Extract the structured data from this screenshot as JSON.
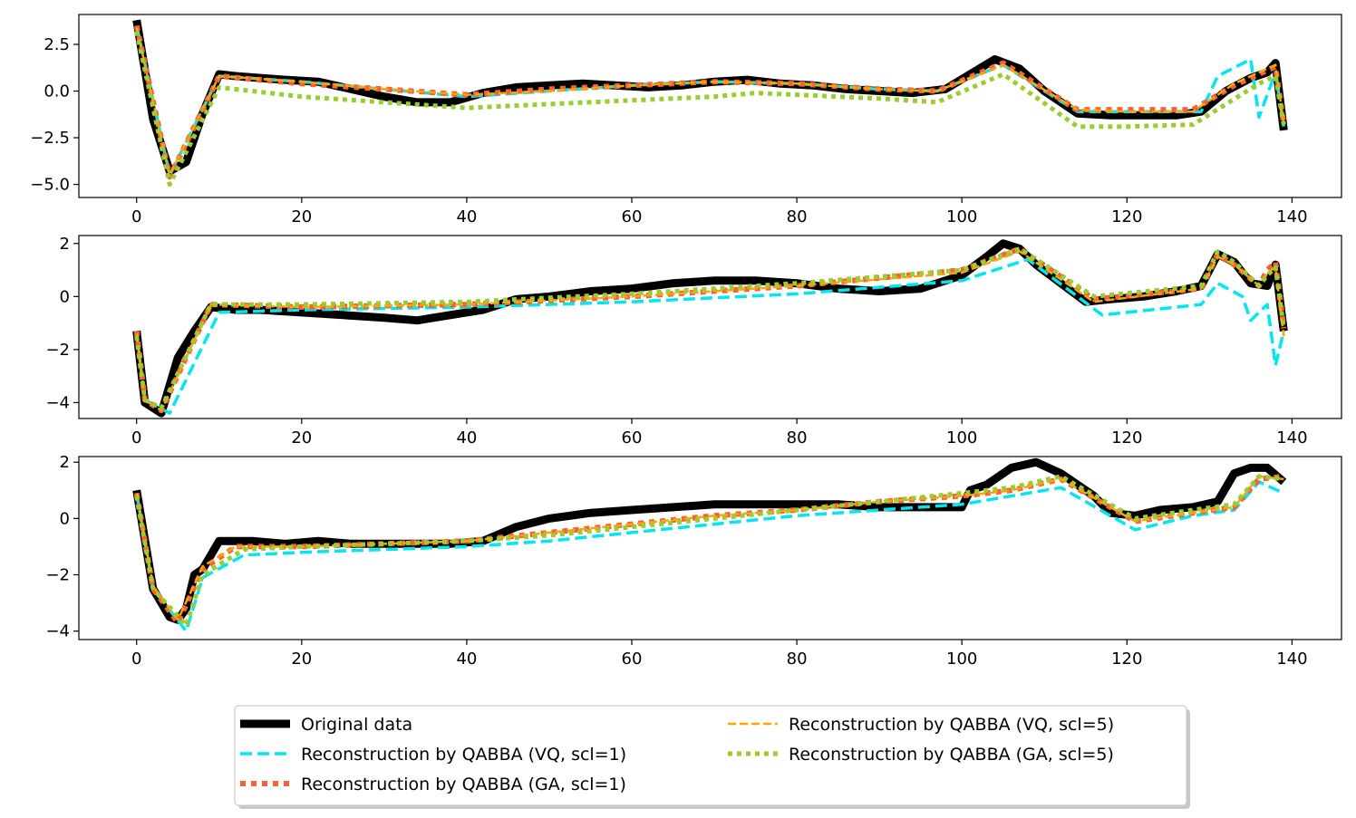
{
  "chart_data": {
    "type": "line",
    "title": "",
    "xlabel": "",
    "ylabel": "",
    "colors": {
      "original": "#000000",
      "vq1": "#00e5ee",
      "ga1": "#f4623a",
      "vq5": "#ffa500",
      "ga5": "#9acd32"
    },
    "legend": {
      "position": "bottom-center",
      "entries": [
        {
          "key": "original",
          "label": "Original data"
        },
        {
          "key": "vq1",
          "label": "Reconstruction by QABBA (VQ, scl=1)"
        },
        {
          "key": "ga1",
          "label": "Reconstruction by QABBA (GA, scl=1)"
        },
        {
          "key": "vq5",
          "label": "Reconstruction by QABBA (VQ, scl=5)"
        },
        {
          "key": "ga5",
          "label": "Reconstruction by QABBA (GA, scl=5)"
        }
      ]
    },
    "panels": [
      {
        "xlim": [
          -7,
          146
        ],
        "ylim": [
          -5.7,
          4.1
        ],
        "xticks": [
          0,
          20,
          40,
          60,
          80,
          100,
          120,
          140
        ],
        "xtick_labels": [
          "0",
          "20",
          "40",
          "60",
          "80",
          "100",
          "120",
          "140"
        ],
        "yticks": [
          2.5,
          0.0,
          -2.5,
          -5.0
        ],
        "ytick_labels": [
          "2.5",
          "0.0",
          "−2.5",
          "−5.0"
        ],
        "series": [
          {
            "key": "original",
            "x": [
              0,
              2,
              4,
              6,
              8,
              10,
              12,
              15,
              18,
              22,
              26,
              30,
              34,
              38,
              42,
              46,
              50,
              54,
              58,
              62,
              66,
              70,
              74,
              78,
              82,
              86,
              90,
              94,
              98,
              101,
              104,
              107,
              110,
              114,
              118,
              122,
              126,
              129,
              132,
              135,
              137,
              138,
              139
            ],
            "y": [
              3.8,
              -1.5,
              -4.3,
              -3.8,
              -1.2,
              0.9,
              0.8,
              0.7,
              0.6,
              0.5,
              0.1,
              -0.3,
              -0.6,
              -0.6,
              -0.1,
              0.2,
              0.3,
              0.4,
              0.3,
              0.2,
              0.3,
              0.5,
              0.6,
              0.4,
              0.3,
              0.1,
              0.0,
              -0.1,
              0.1,
              0.9,
              1.7,
              1.2,
              0.0,
              -1.2,
              -1.3,
              -1.3,
              -1.3,
              -1.1,
              0.0,
              0.7,
              1.0,
              1.5,
              -2.1
            ]
          },
          {
            "key": "vq1",
            "x": [
              0,
              4,
              10,
              20,
              30,
              40,
              50,
              60,
              70,
              80,
              90,
              97,
              105,
              114,
              120,
              129,
              131,
              135,
              136,
              138,
              139
            ],
            "y": [
              3.5,
              -4.5,
              0.8,
              0.5,
              0.1,
              -0.3,
              0.0,
              0.3,
              0.5,
              0.4,
              0.1,
              0.0,
              1.4,
              -1.1,
              -1.1,
              -1.1,
              0.8,
              1.7,
              -1.4,
              1.0,
              -1.9
            ]
          },
          {
            "key": "ga1",
            "x": [
              0,
              4,
              10,
              20,
              30,
              40,
              50,
              60,
              70,
              80,
              90,
              97,
              105,
              114,
              120,
              128,
              133,
              138,
              139
            ],
            "y": [
              3.5,
              -4.6,
              0.8,
              0.4,
              0.1,
              -0.2,
              0.1,
              0.3,
              0.5,
              0.4,
              0.1,
              0.0,
              1.5,
              -1.0,
              -1.0,
              -1.0,
              0.3,
              1.3,
              -1.8
            ]
          },
          {
            "key": "vq5",
            "x": [
              0,
              4,
              10,
              20,
              30,
              40,
              50,
              60,
              70,
              80,
              90,
              97,
              105,
              114,
              120,
              128,
              133,
              138,
              139
            ],
            "y": [
              3.4,
              -4.5,
              0.8,
              0.5,
              0.1,
              -0.2,
              0.0,
              0.3,
              0.5,
              0.4,
              0.1,
              0.0,
              1.4,
              -1.0,
              -1.1,
              -1.1,
              0.4,
              1.4,
              -1.8
            ]
          },
          {
            "key": "ga5",
            "x": [
              0,
              4,
              10,
              20,
              30,
              40,
              50,
              60,
              70,
              75,
              80,
              90,
              97,
              105,
              114,
              120,
              128,
              136,
              138,
              139
            ],
            "y": [
              3.2,
              -5.0,
              0.2,
              -0.3,
              -0.6,
              -0.9,
              -0.7,
              -0.5,
              -0.3,
              -0.1,
              -0.2,
              -0.4,
              -0.6,
              0.9,
              -1.9,
              -1.9,
              -1.8,
              0.4,
              0.8,
              -1.8
            ]
          }
        ]
      },
      {
        "xlim": [
          -7,
          146
        ],
        "ylim": [
          -4.6,
          2.3
        ],
        "xticks": [
          0,
          20,
          40,
          60,
          80,
          100,
          120,
          140
        ],
        "xtick_labels": [
          "0",
          "20",
          "40",
          "60",
          "80",
          "100",
          "120",
          "140"
        ],
        "yticks": [
          2,
          0,
          -2,
          -4
        ],
        "ytick_labels": [
          "2",
          "0",
          "−2",
          "−4"
        ],
        "series": [
          {
            "key": "original",
            "x": [
              0,
              1,
              3,
              5,
              7,
              9,
              12,
              15,
              20,
              25,
              30,
              34,
              38,
              42,
              46,
              50,
              55,
              60,
              65,
              70,
              75,
              80,
              85,
              90,
              95,
              100,
              103,
              105,
              107,
              109,
              112,
              115,
              118,
              122,
              126,
              129,
              131,
              133,
              135,
              137,
              138,
              139
            ],
            "y": [
              -1.3,
              -4.0,
              -4.4,
              -2.3,
              -1.3,
              -0.4,
              -0.5,
              -0.5,
              -0.6,
              -0.7,
              -0.8,
              -0.9,
              -0.7,
              -0.5,
              -0.1,
              0.0,
              0.2,
              0.3,
              0.5,
              0.6,
              0.6,
              0.5,
              0.3,
              0.2,
              0.3,
              0.8,
              1.5,
              2.0,
              1.8,
              1.2,
              0.5,
              -0.2,
              -0.1,
              0.0,
              0.2,
              0.4,
              1.6,
              1.3,
              0.5,
              0.4,
              1.2,
              -1.3
            ]
          },
          {
            "key": "vq1",
            "x": [
              0,
              1,
              4,
              10,
              20,
              40,
              60,
              80,
              100,
              108,
              117,
              129,
              131,
              134,
              135,
              137,
              138,
              139
            ],
            "y": [
              -1.4,
              -3.9,
              -4.4,
              -0.6,
              -0.5,
              -0.4,
              -0.2,
              0.1,
              0.6,
              1.4,
              -0.7,
              -0.3,
              0.5,
              0.0,
              -0.9,
              -0.3,
              -2.6,
              -1.3
            ]
          },
          {
            "key": "ga1",
            "x": [
              0,
              1,
              3,
              9,
              20,
              40,
              60,
              80,
              100,
              107,
              116,
              129,
              131,
              133,
              136,
              137,
              138,
              139
            ],
            "y": [
              -1.3,
              -3.9,
              -4.3,
              -0.3,
              -0.4,
              -0.3,
              0.0,
              0.4,
              1.0,
              1.8,
              -0.1,
              0.3,
              1.6,
              1.2,
              0.4,
              1.0,
              1.3,
              -1.2
            ]
          },
          {
            "key": "vq5",
            "x": [
              0,
              1,
              3,
              9,
              20,
              40,
              60,
              80,
              100,
              107,
              116,
              129,
              131,
              133,
              136,
              137,
              138,
              139
            ],
            "y": [
              -1.4,
              -3.9,
              -4.3,
              -0.3,
              -0.4,
              -0.3,
              0.0,
              0.4,
              0.9,
              1.7,
              -0.2,
              0.3,
              1.5,
              1.2,
              0.4,
              0.9,
              1.1,
              -1.5
            ]
          },
          {
            "key": "ga5",
            "x": [
              0,
              1,
              3,
              9,
              20,
              40,
              60,
              80,
              100,
              107,
              116,
              129,
              131,
              133,
              136,
              137,
              138,
              139
            ],
            "y": [
              -1.5,
              -3.9,
              -4.2,
              -0.3,
              -0.3,
              -0.2,
              0.1,
              0.5,
              1.0,
              1.8,
              0.0,
              0.4,
              1.7,
              1.3,
              0.4,
              0.8,
              1.1,
              -1.2
            ]
          }
        ]
      },
      {
        "xlim": [
          -7,
          146
        ],
        "ylim": [
          -4.3,
          2.2
        ],
        "xticks": [
          0,
          20,
          40,
          60,
          80,
          100,
          120,
          140
        ],
        "xtick_labels": [
          "0",
          "20",
          "40",
          "60",
          "80",
          "100",
          "120",
          "140"
        ],
        "yticks": [
          2,
          0,
          -2,
          -4
        ],
        "ytick_labels": [
          "2",
          "0",
          "−2",
          "−4"
        ],
        "series": [
          {
            "key": "original",
            "x": [
              0,
              2,
              4,
              5,
              6,
              7,
              8,
              10,
              14,
              18,
              22,
              26,
              30,
              34,
              38,
              42,
              46,
              50,
              55,
              60,
              65,
              70,
              75,
              80,
              85,
              90,
              95,
              100,
              101,
              103,
              106,
              109,
              112,
              114,
              116,
              118,
              121,
              124,
              128,
              131,
              133,
              135,
              137,
              139
            ],
            "y": [
              1.0,
              -2.5,
              -3.5,
              -3.6,
              -3.2,
              -2.0,
              -1.8,
              -0.8,
              -0.8,
              -0.9,
              -0.8,
              -0.9,
              -0.9,
              -0.9,
              -0.9,
              -0.8,
              -0.3,
              0.0,
              0.2,
              0.3,
              0.4,
              0.5,
              0.5,
              0.5,
              0.5,
              0.4,
              0.4,
              0.4,
              1.0,
              1.2,
              1.8,
              2.0,
              1.6,
              1.2,
              0.8,
              0.2,
              0.1,
              0.3,
              0.4,
              0.6,
              1.6,
              1.8,
              1.8,
              1.3
            ]
          },
          {
            "key": "vq1",
            "x": [
              0,
              2,
              6,
              8,
              13,
              20,
              30,
              40,
              50,
              60,
              70,
              80,
              90,
              100,
              106,
              112,
              121,
              128,
              133,
              136,
              139
            ],
            "y": [
              0.9,
              -2.5,
              -4.0,
              -2.1,
              -1.3,
              -1.2,
              -1.1,
              -1.0,
              -0.8,
              -0.5,
              -0.2,
              0.1,
              0.3,
              0.5,
              0.8,
              1.1,
              -0.4,
              0.1,
              0.3,
              1.3,
              0.9
            ]
          },
          {
            "key": "ga1",
            "x": [
              0,
              2,
              5,
              8,
              12,
              20,
              30,
              40,
              50,
              60,
              70,
              80,
              90,
              100,
              106,
              112,
              121,
              128,
              133,
              136,
              139
            ],
            "y": [
              0.9,
              -2.5,
              -3.7,
              -1.8,
              -1.0,
              -1.0,
              -0.9,
              -0.8,
              -0.5,
              -0.2,
              0.1,
              0.3,
              0.6,
              0.8,
              1.0,
              1.4,
              -0.1,
              0.2,
              0.4,
              1.4,
              1.5
            ]
          },
          {
            "key": "vq5",
            "x": [
              0,
              2,
              5,
              8,
              12,
              20,
              30,
              40,
              50,
              60,
              70,
              80,
              90,
              100,
              106,
              112,
              121,
              128,
              133,
              136,
              139
            ],
            "y": [
              0.9,
              -2.4,
              -3.6,
              -1.7,
              -1.0,
              -1.0,
              -0.9,
              -0.8,
              -0.5,
              -0.2,
              0.1,
              0.3,
              0.6,
              0.8,
              1.0,
              1.4,
              -0.1,
              0.2,
              0.4,
              1.5,
              1.4
            ]
          },
          {
            "key": "ga5",
            "x": [
              0,
              2,
              6,
              8,
              13,
              20,
              30,
              40,
              50,
              60,
              70,
              80,
              90,
              100,
              106,
              112,
              121,
              128,
              133,
              136,
              139
            ],
            "y": [
              0.8,
              -2.5,
              -3.8,
              -2.0,
              -1.1,
              -1.0,
              -0.9,
              -0.8,
              -0.6,
              -0.3,
              0.0,
              0.3,
              0.6,
              0.9,
              1.1,
              1.5,
              0.0,
              0.3,
              0.5,
              1.5,
              1.4
            ]
          }
        ]
      }
    ]
  }
}
